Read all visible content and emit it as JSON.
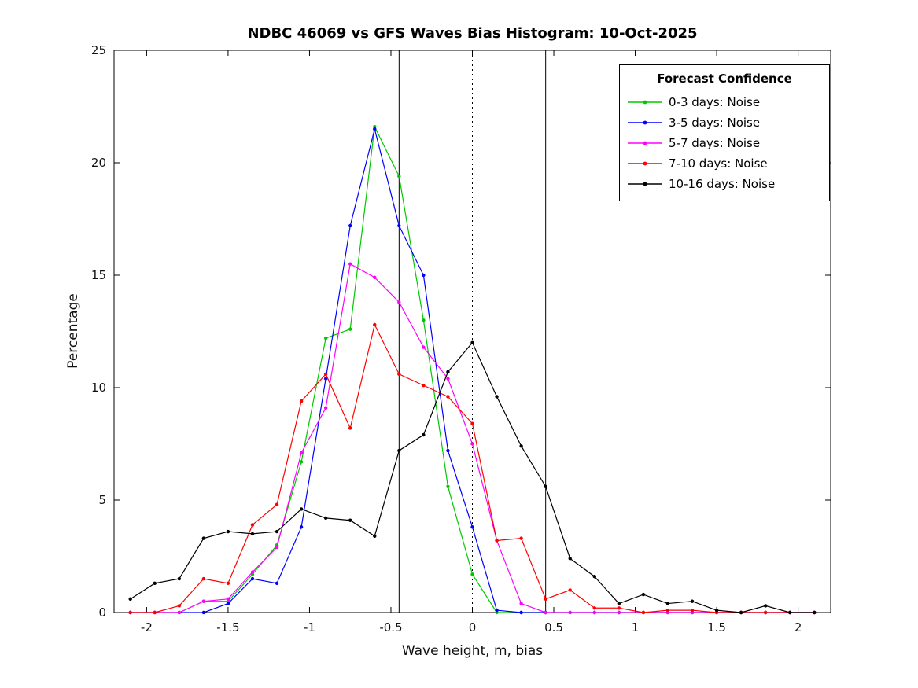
{
  "chart_data": {
    "type": "line",
    "title": "NDBC 46069 vs GFS Waves Bias Histogram: 10-Oct-2025",
    "xlabel": "Wave height, m, bias",
    "ylabel": "Percentage",
    "xlim": [
      -2.2,
      2.2
    ],
    "ylim": [
      0,
      25
    ],
    "xticks": [
      -2,
      -1.5,
      -1,
      -0.5,
      0,
      0.5,
      1,
      1.5,
      2
    ],
    "yticks": [
      0,
      5,
      10,
      15,
      20,
      25
    ],
    "grid": false,
    "legend": {
      "title": "Forecast Confidence",
      "position": "top-right"
    },
    "vlines": [
      {
        "x": -0.45,
        "style": "solid"
      },
      {
        "x": 0,
        "style": "dotted"
      },
      {
        "x": 0.45,
        "style": "solid"
      }
    ],
    "x": [
      -2.1,
      -1.95,
      -1.8,
      -1.65,
      -1.5,
      -1.35,
      -1.2,
      -1.05,
      -0.9,
      -0.75,
      -0.6,
      -0.45,
      -0.3,
      -0.15,
      0,
      0.15,
      0.3,
      0.45,
      0.6,
      0.75,
      0.9,
      1.05,
      1.2,
      1.35,
      1.5,
      1.65,
      1.8,
      1.95,
      2.1
    ],
    "series": [
      {
        "name": "0-3 days: Noise",
        "color": "#00c800",
        "values": [
          0,
          0,
          0,
          0.5,
          0.5,
          1.7,
          3.0,
          6.7,
          12.2,
          12.6,
          21.6,
          19.4,
          13.0,
          5.6,
          1.7,
          0,
          0,
          0,
          0,
          0,
          0,
          0,
          0,
          0,
          0,
          0,
          0,
          0,
          0
        ]
      },
      {
        "name": "3-5 days: Noise",
        "color": "#0000ff",
        "values": [
          0,
          0,
          0,
          0,
          0.4,
          1.5,
          1.3,
          3.8,
          10.4,
          17.2,
          21.5,
          17.2,
          15.0,
          7.2,
          3.8,
          0.1,
          0,
          0,
          0,
          0,
          0,
          0,
          0,
          0,
          0,
          0,
          0,
          0,
          0
        ]
      },
      {
        "name": "5-7 days: Noise",
        "color": "#ff00ff",
        "values": [
          0,
          0,
          0,
          0.5,
          0.6,
          1.8,
          2.9,
          7.1,
          9.1,
          15.5,
          14.9,
          13.8,
          11.8,
          10.4,
          7.5,
          3.2,
          0.4,
          0,
          0,
          0,
          0,
          0,
          0,
          0,
          0,
          0,
          0,
          0,
          0
        ]
      },
      {
        "name": "7-10 days: Noise",
        "color": "#ff0000",
        "values": [
          0,
          0,
          0.3,
          1.5,
          1.3,
          3.9,
          4.8,
          9.4,
          10.6,
          8.2,
          12.8,
          10.6,
          10.1,
          9.6,
          8.4,
          3.2,
          3.3,
          0.6,
          1.0,
          0.2,
          0.2,
          0,
          0.1,
          0.1,
          0,
          0,
          0,
          0,
          0
        ]
      },
      {
        "name": "10-16 days: Noise",
        "color": "#000000",
        "values": [
          0.6,
          1.3,
          1.5,
          3.3,
          3.6,
          3.5,
          3.6,
          4.6,
          4.2,
          4.1,
          3.4,
          7.2,
          7.9,
          10.7,
          12.0,
          9.6,
          7.4,
          5.6,
          2.4,
          1.6,
          0.4,
          0.8,
          0.4,
          0.5,
          0.1,
          0,
          0.3,
          0,
          0
        ]
      }
    ]
  }
}
